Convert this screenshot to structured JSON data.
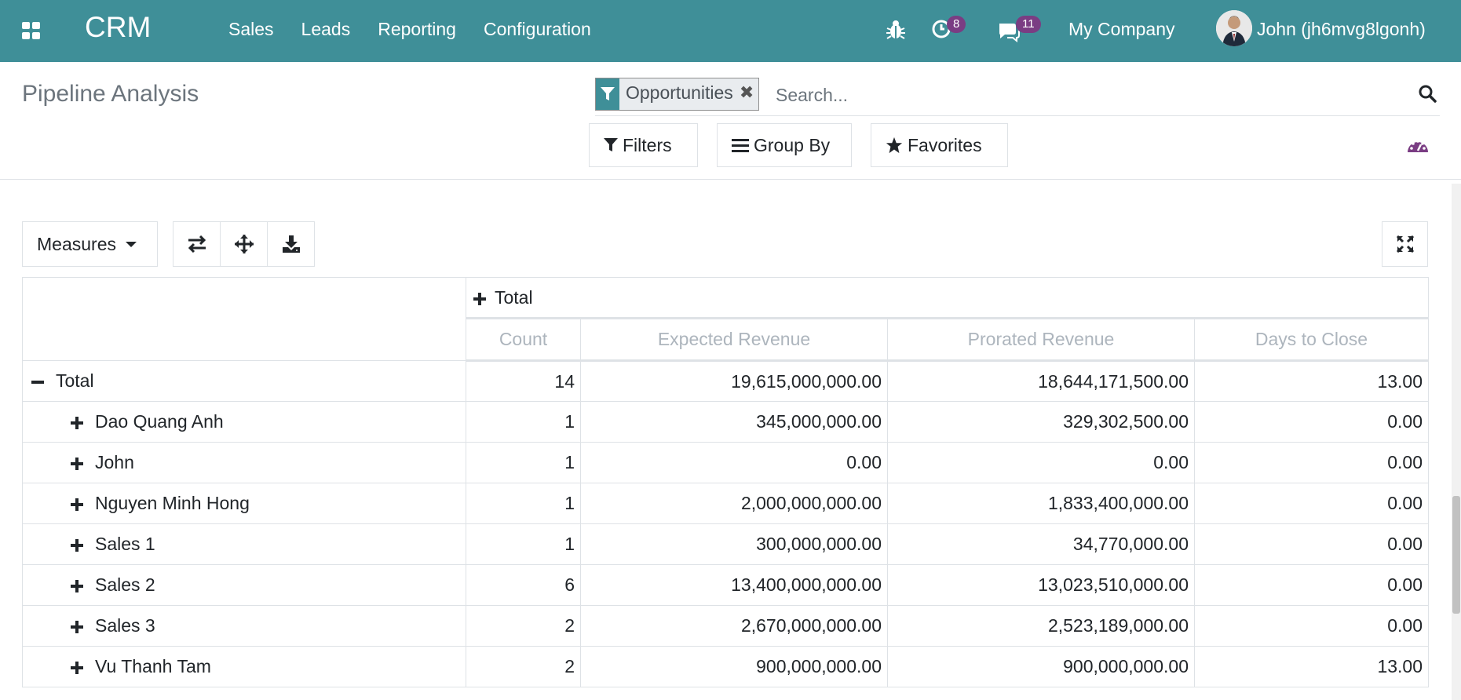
{
  "navbar": {
    "brand": "CRM",
    "menu": [
      "Sales",
      "Leads",
      "Reporting",
      "Configuration"
    ],
    "activity_count": "8",
    "message_count": "11",
    "company": "My Company",
    "user": "John (jh6mvg8lgonh)",
    "icons": [
      "apps-grid-icon",
      "bug-icon",
      "clock-icon",
      "chat-icon",
      "user-avatar"
    ]
  },
  "control_panel": {
    "title": "Pipeline Analysis",
    "facet_label": "Opportunities",
    "search_placeholder": "Search...",
    "filters_label": "Filters",
    "group_by_label": "Group By",
    "favorites_label": "Favorites"
  },
  "toolbar": {
    "measures_label": "Measures"
  },
  "pivot": {
    "col_header": "Total",
    "measures": [
      "Count",
      "Expected Revenue",
      "Prorated Revenue",
      "Days to Close"
    ],
    "total_row": {
      "label": "Total",
      "values": [
        "14",
        "19,615,000,000.00",
        "18,644,171,500.00",
        "13.00"
      ]
    },
    "rows": [
      {
        "label": "Dao Quang Anh",
        "values": [
          "1",
          "345,000,000.00",
          "329,302,500.00",
          "0.00"
        ]
      },
      {
        "label": "John",
        "values": [
          "1",
          "0.00",
          "0.00",
          "0.00"
        ]
      },
      {
        "label": "Nguyen Minh Hong",
        "values": [
          "1",
          "2,000,000,000.00",
          "1,833,400,000.00",
          "0.00"
        ]
      },
      {
        "label": "Sales 1",
        "values": [
          "1",
          "300,000,000.00",
          "34,770,000.00",
          "0.00"
        ]
      },
      {
        "label": "Sales 2",
        "values": [
          "6",
          "13,400,000,000.00",
          "13,023,510,000.00",
          "0.00"
        ]
      },
      {
        "label": "Sales 3",
        "values": [
          "2",
          "2,670,000,000.00",
          "2,523,189,000.00",
          "0.00"
        ]
      },
      {
        "label": "Vu Thanh Tam",
        "values": [
          "2",
          "900,000,000.00",
          "900,000,000.00",
          "13.00"
        ]
      }
    ]
  },
  "colors": {
    "navbar": "#3f8f98",
    "badge": "#7a3d83",
    "measure_header": "#adb5bd"
  }
}
